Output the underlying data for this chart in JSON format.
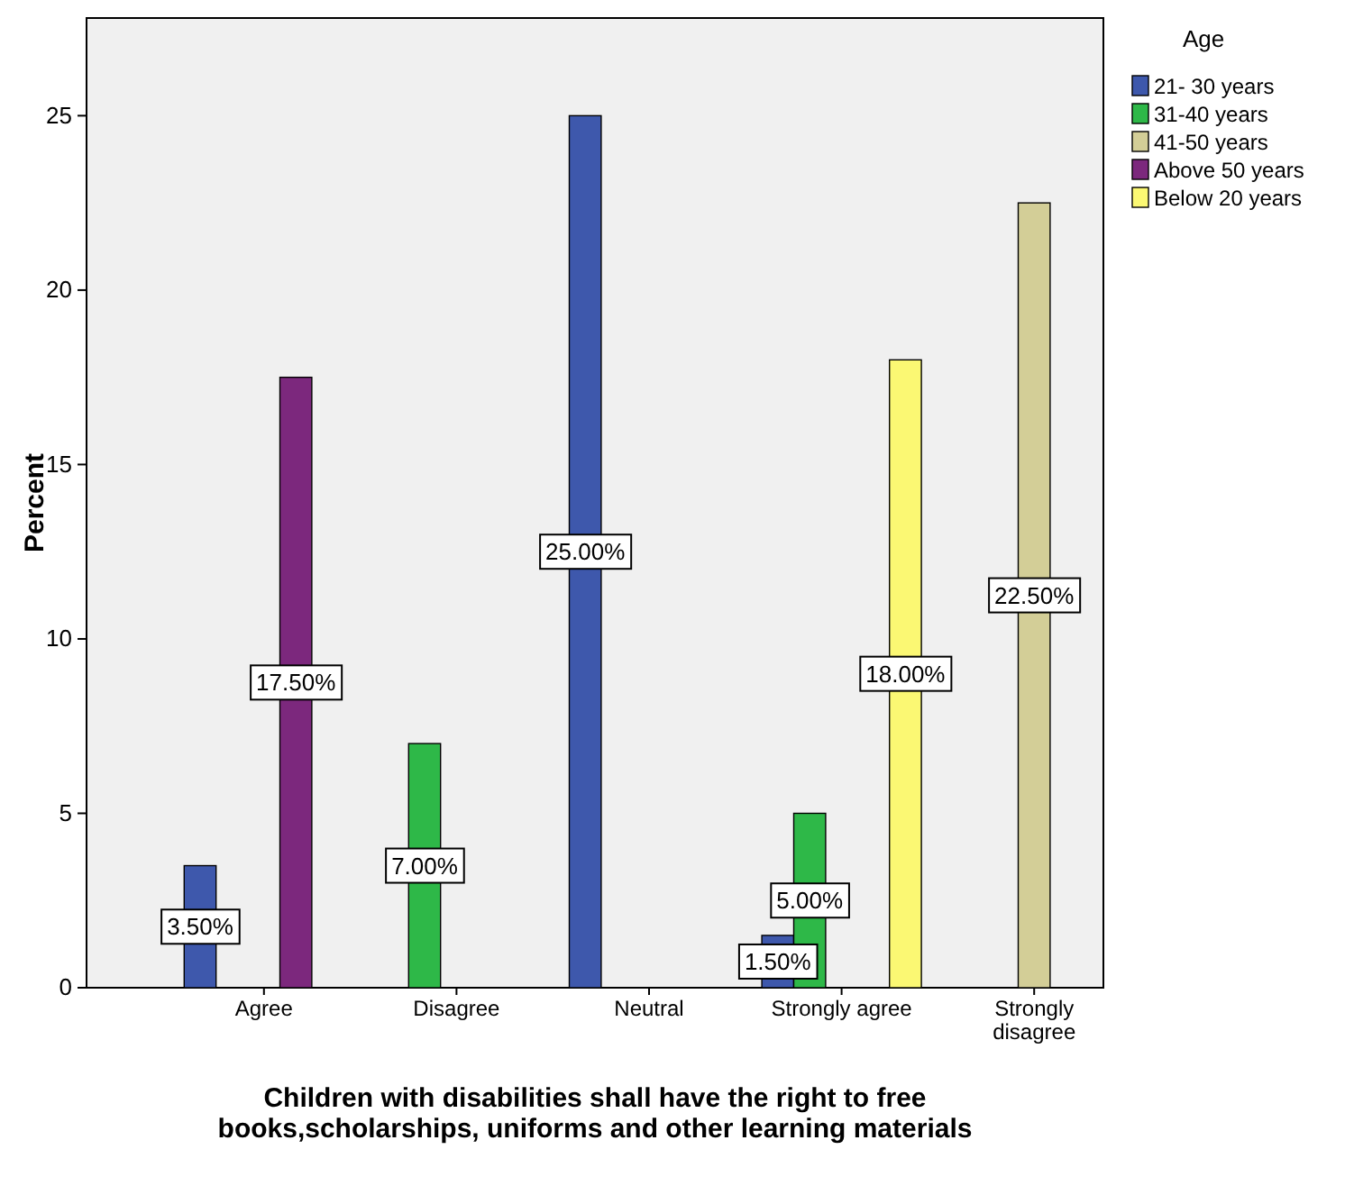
{
  "chart_data": {
    "type": "bar",
    "xlabel": "Children with disabilities shall have the right to free books,scholarships, uniforms and other learning materials",
    "ylabel": "Percent",
    "legend_title": "Age",
    "legend": "top right",
    "categories": [
      "Agree",
      "Disagree",
      "Neutral",
      "Strongly agree",
      "Strongly disagree"
    ],
    "ylim": [
      0,
      27.8
    ],
    "yticks": [
      0,
      5,
      10,
      15,
      20,
      25
    ],
    "series": [
      {
        "name": "21- 30 years",
        "color": "#3e58ac",
        "values": [
          3.5,
          null,
          25,
          1.5,
          null
        ],
        "value_labels": [
          "3.50%",
          null,
          "25.00%",
          "1.50%",
          null
        ]
      },
      {
        "name": "31-40 years",
        "color": "#2eb848",
        "values": [
          null,
          7,
          null,
          5,
          null
        ],
        "value_labels": [
          null,
          "7.00%",
          null,
          "5.00%",
          null
        ]
      },
      {
        "name": "41-50 years",
        "color": "#d3ce97",
        "values": [
          null,
          null,
          null,
          null,
          22.5
        ],
        "value_labels": [
          null,
          null,
          null,
          null,
          "22.50%"
        ]
      },
      {
        "name": "Above 50 years",
        "color": "#7c287d",
        "values": [
          17.5,
          null,
          null,
          null,
          null
        ],
        "value_labels": [
          "17.50%",
          null,
          null,
          null,
          null
        ]
      },
      {
        "name": "Below 20 years",
        "color": "#fbf873",
        "values": [
          null,
          null,
          null,
          18,
          null
        ],
        "value_labels": [
          null,
          null,
          null,
          "18.00%",
          null
        ]
      }
    ]
  }
}
